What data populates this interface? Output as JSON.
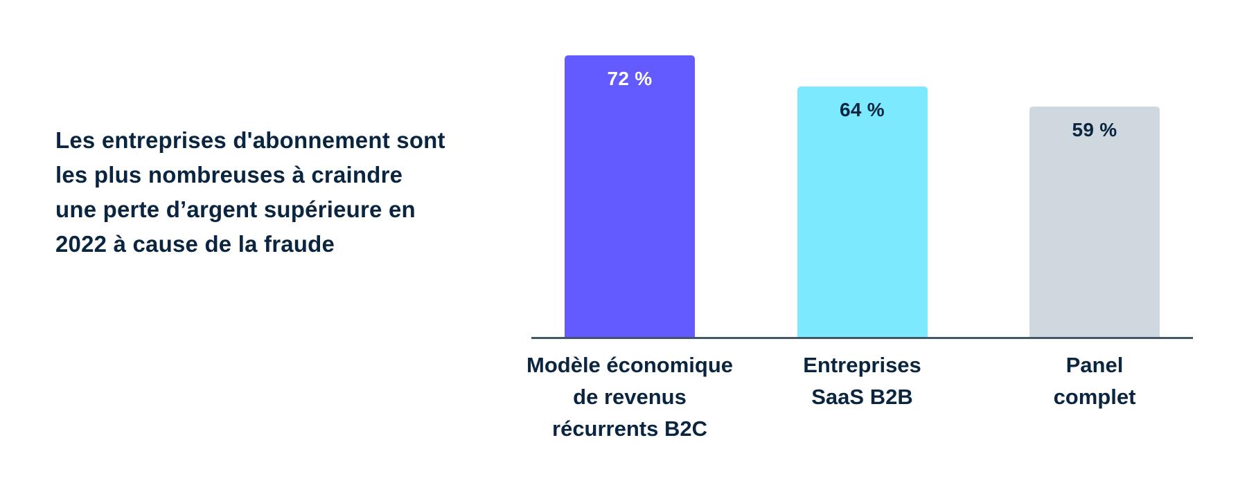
{
  "headline": "Les entreprises d'abonnement sont les plus nombreuses à craindre une perte d’argent supérieure en 2022 à cause de la fraude",
  "chart_data": {
    "type": "bar",
    "categories": [
      "Modèle économique\nde revenus\nrécurrents B2C",
      "Entreprises\nSaaS B2B",
      "Panel\ncomplet"
    ],
    "values": [
      72,
      64,
      59
    ],
    "value_labels": [
      "72 %",
      "64 %",
      "59 %"
    ],
    "bar_colors": [
      "#635BFF",
      "#7DE9FF",
      "#CFD7DF"
    ],
    "value_label_colors": [
      "#FFFFFF",
      "#0A2540",
      "#0A2540"
    ],
    "title": "",
    "xlabel": "",
    "ylabel": "",
    "ylim": [
      0,
      75
    ],
    "grid": false,
    "legend": false,
    "axis_color": "#425466"
  },
  "colors": {
    "headline_text": "#0A2540",
    "background": "#FFFFFF"
  }
}
